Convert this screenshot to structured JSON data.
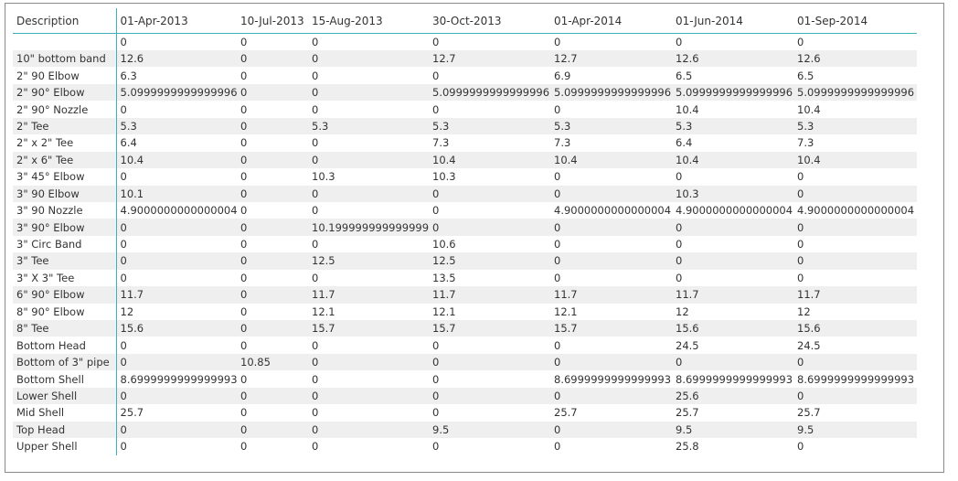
{
  "table": {
    "row_header_label": "Description",
    "columns": [
      "01-Apr-2013",
      "10-Jul-2013",
      "15-Aug-2013",
      "30-Oct-2013",
      "01-Apr-2014",
      "01-Jun-2014",
      "01-Sep-2014"
    ],
    "rows": [
      {
        "label": "",
        "values": [
          "0",
          "0",
          "0",
          "0",
          "0",
          "0",
          "0"
        ]
      },
      {
        "label": "10\" bottom band",
        "values": [
          "12.6",
          "0",
          "0",
          "12.7",
          "12.7",
          "12.6",
          "12.6"
        ]
      },
      {
        "label": "2\" 90 Elbow",
        "values": [
          "6.3",
          "0",
          "0",
          "0",
          "6.9",
          "6.5",
          "6.5"
        ]
      },
      {
        "label": "2\" 90° Elbow",
        "values": [
          "5.0999999999999996",
          "0",
          "0",
          "5.0999999999999996",
          "5.0999999999999996",
          "5.0999999999999996",
          "5.0999999999999996"
        ]
      },
      {
        "label": "2\" 90° Nozzle",
        "values": [
          "0",
          "0",
          "0",
          "0",
          "0",
          "10.4",
          "10.4"
        ]
      },
      {
        "label": "2\" Tee",
        "values": [
          "5.3",
          "0",
          "5.3",
          "5.3",
          "5.3",
          "5.3",
          "5.3"
        ]
      },
      {
        "label": "2\" x 2\" Tee",
        "values": [
          "6.4",
          "0",
          "0",
          "7.3",
          "7.3",
          "6.4",
          "7.3"
        ]
      },
      {
        "label": "2\" x 6\" Tee",
        "values": [
          "10.4",
          "0",
          "0",
          "10.4",
          "10.4",
          "10.4",
          "10.4"
        ]
      },
      {
        "label": "3\" 45° Elbow",
        "values": [
          "0",
          "0",
          "10.3",
          "10.3",
          "0",
          "0",
          "0"
        ]
      },
      {
        "label": "3\" 90 Elbow",
        "values": [
          "10.1",
          "0",
          "0",
          "0",
          "0",
          "10.3",
          "0"
        ]
      },
      {
        "label": "3\" 90 Nozzle",
        "values": [
          "4.9000000000000004",
          "0",
          "0",
          "0",
          "4.9000000000000004",
          "4.9000000000000004",
          "4.9000000000000004"
        ]
      },
      {
        "label": "3\" 90° Elbow",
        "values": [
          "0",
          "0",
          "10.199999999999999",
          "0",
          "0",
          "0",
          "0"
        ]
      },
      {
        "label": "3\" Circ Band",
        "values": [
          "0",
          "0",
          "0",
          "10.6",
          "0",
          "0",
          "0"
        ]
      },
      {
        "label": "3\" Tee",
        "values": [
          "0",
          "0",
          "12.5",
          "12.5",
          "0",
          "0",
          "0"
        ]
      },
      {
        "label": "3\" X 3\" Tee",
        "values": [
          "0",
          "0",
          "0",
          "13.5",
          "0",
          "0",
          "0"
        ]
      },
      {
        "label": "6\" 90° Elbow",
        "values": [
          "11.7",
          "0",
          "11.7",
          "11.7",
          "11.7",
          "11.7",
          "11.7"
        ]
      },
      {
        "label": "8\" 90° Elbow",
        "values": [
          "12",
          "0",
          "12.1",
          "12.1",
          "12.1",
          "12",
          "12"
        ]
      },
      {
        "label": "8\" Tee",
        "values": [
          "15.6",
          "0",
          "15.7",
          "15.7",
          "15.7",
          "15.6",
          "15.6"
        ]
      },
      {
        "label": "Bottom Head",
        "values": [
          "0",
          "0",
          "0",
          "0",
          "0",
          "24.5",
          "24.5"
        ]
      },
      {
        "label": "Bottom of 3\" pipe",
        "values": [
          "0",
          "10.85",
          "0",
          "0",
          "0",
          "0",
          "0"
        ]
      },
      {
        "label": "Bottom Shell",
        "values": [
          "8.6999999999999993",
          "0",
          "0",
          "0",
          "8.6999999999999993",
          "8.6999999999999993",
          "8.6999999999999993"
        ]
      },
      {
        "label": "Lower Shell",
        "values": [
          "0",
          "0",
          "0",
          "0",
          "0",
          "25.6",
          "0"
        ]
      },
      {
        "label": "Mid Shell",
        "values": [
          "25.7",
          "0",
          "0",
          "0",
          "25.7",
          "25.7",
          "25.7"
        ]
      },
      {
        "label": "Top Head",
        "values": [
          "0",
          "0",
          "0",
          "9.5",
          "0",
          "9.5",
          "9.5"
        ]
      },
      {
        "label": "Upper Shell",
        "values": [
          "0",
          "0",
          "0",
          "0",
          "0",
          "25.8",
          "0"
        ]
      }
    ]
  },
  "colors": {
    "header_rule": "#3fb0b6",
    "zebra": "#efefef",
    "text": "#333333",
    "frame": "#8a8a8a"
  }
}
